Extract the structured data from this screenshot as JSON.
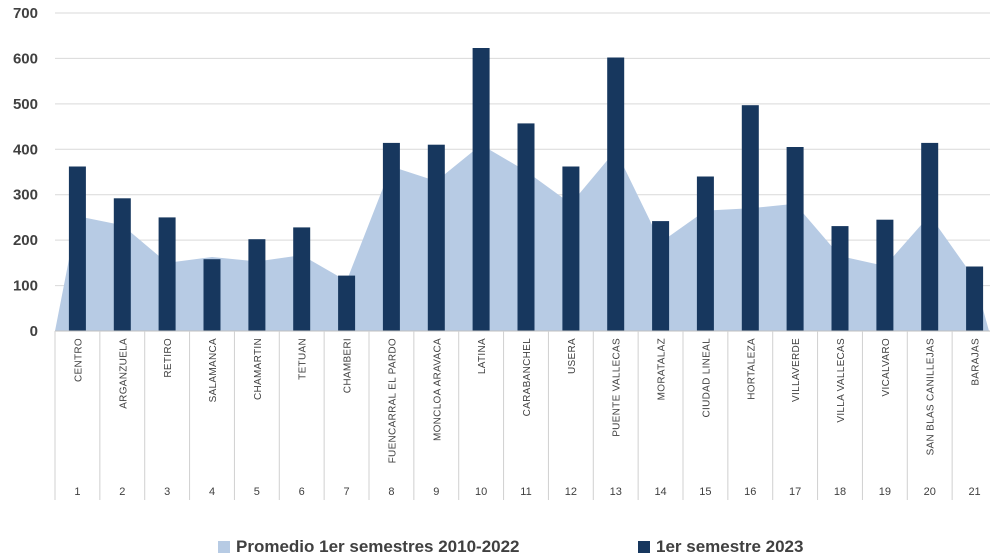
{
  "chart_data": {
    "type": "bar",
    "categories": [
      "CENTRO",
      "ARGANZUELA",
      "RETIRO",
      "SALAMANCA",
      "CHAMARTIN",
      "TETUAN",
      "CHAMBERI",
      "FUENCARRAL EL PARDO",
      "MONCLOA ARAVACA",
      "LATINA",
      "CARABANCHEL",
      "USERA",
      "PUENTE VALLECAS",
      "MORATALAZ",
      "CIUDAD LINEAL",
      "HORTALEZA",
      "VILLAVERDE",
      "VILLA VALLECAS",
      "VICALVARO",
      "SAN BLAS CANILLEJAS",
      "BARAJAS"
    ],
    "category_numbers": [
      "1",
      "2",
      "3",
      "4",
      "5",
      "6",
      "7",
      "8",
      "9",
      "10",
      "11",
      "12",
      "13",
      "14",
      "15",
      "16",
      "17",
      "18",
      "19",
      "20",
      "21"
    ],
    "series": [
      {
        "name": "Promedio 1er semestres 2010-2022",
        "type": "area",
        "color": "#b7cbe4",
        "values": [
          253,
          233,
          150,
          163,
          153,
          167,
          110,
          362,
          330,
          410,
          352,
          280,
          398,
          195,
          265,
          270,
          280,
          165,
          143,
          255,
          115
        ]
      },
      {
        "name": "1er semestre 2023",
        "type": "bar",
        "color": "#17375e",
        "values": [
          362,
          292,
          250,
          158,
          202,
          228,
          122,
          414,
          410,
          623,
          457,
          362,
          602,
          242,
          340,
          497,
          405,
          231,
          245,
          414,
          142
        ]
      }
    ],
    "yticks": [
      "0",
      "100",
      "200",
      "300",
      "400",
      "500",
      "600",
      "700"
    ],
    "ylim": [
      0,
      700
    ],
    "xlabel": "",
    "ylabel": "",
    "title": "",
    "grid": true,
    "legend_position": "bottom"
  }
}
